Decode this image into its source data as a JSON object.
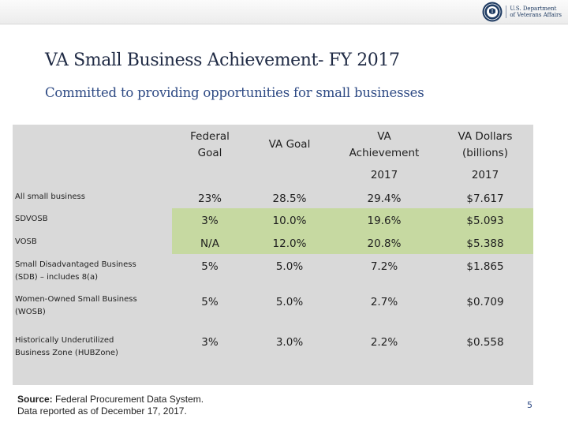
{
  "header": {
    "logo": {
      "icon": "va-seal-icon",
      "line1": "U.S. Department",
      "line2": "of Veterans Affairs"
    }
  },
  "slide": {
    "title": "VA Small Business Achievement- FY 2017",
    "subtitle": "Committed to providing opportunities for small businesses",
    "page_number": "5"
  },
  "table": {
    "columns": [
      {
        "line1": "Federal",
        "line2": "Goal",
        "year": ""
      },
      {
        "line1": "VA Goal",
        "line2": "",
        "year": ""
      },
      {
        "line1": "VA",
        "line2": "Achievement",
        "year": "2017"
      },
      {
        "line1": "VA Dollars",
        "line2": "(billions)",
        "year": "2017"
      }
    ],
    "rows": [
      {
        "label1": "All small business",
        "label2": "",
        "values": [
          "23%",
          "28.5%",
          "29.4%",
          "$7.617"
        ]
      },
      {
        "label1": "SDVOSB",
        "label2": "",
        "values": [
          "3%",
          "10.0%",
          "19.6%",
          "$5.093"
        ]
      },
      {
        "label1": "VOSB",
        "label2": "",
        "values": [
          "N/A",
          "12.0%",
          "20.8%",
          "$5.388"
        ]
      },
      {
        "label1": "Small Disadvantaged Business",
        "label2": "(SDB) – includes 8(a)",
        "values": [
          "5%",
          "5.0%",
          "7.2%",
          "$1.865"
        ]
      },
      {
        "label1": "Women-Owned Small Business",
        "label2": "(WOSB)",
        "values": [
          "5%",
          "5.0%",
          "2.7%",
          "$0.709"
        ]
      },
      {
        "label1": "Historically Underutilized",
        "label2": "Business Zone (HUBZone)",
        "values": [
          "3%",
          "3.0%",
          "2.2%",
          "$0.558"
        ]
      }
    ],
    "highlight_color": "#c6d9a1",
    "background_color": "#d9d9d9"
  },
  "footer": {
    "source_label": "Source:",
    "source_text": "Federal Procurement Data System.",
    "note": "Data reported as of December 17, 2017."
  }
}
